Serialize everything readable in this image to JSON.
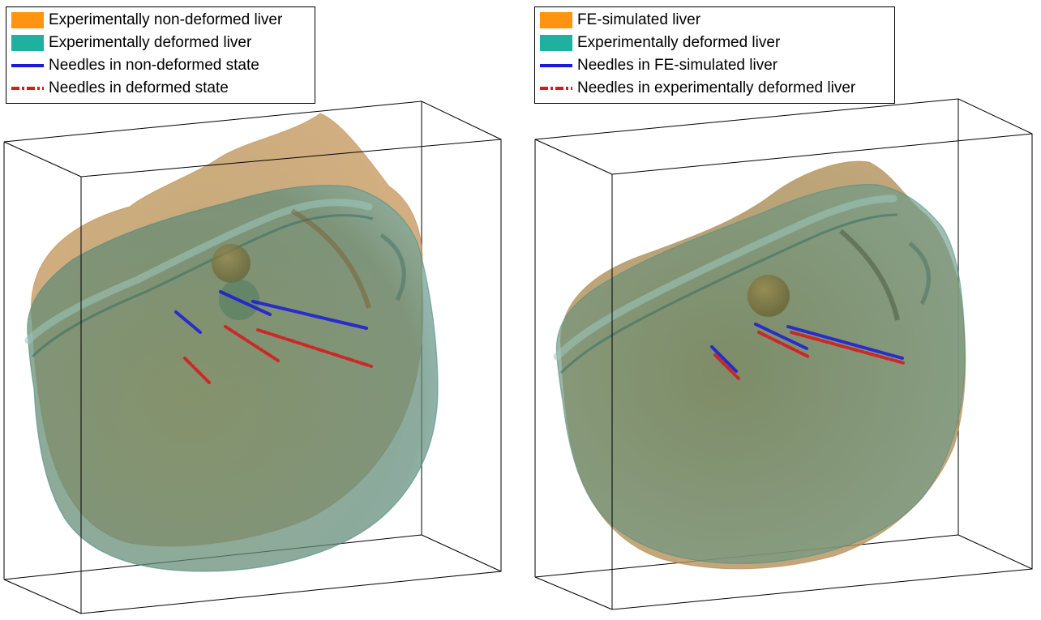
{
  "colors": {
    "non_deformed_liver": "#ff9410",
    "deformed_liver": "#20b0a0",
    "needles_blue": "#1a1ad8",
    "needles_red": "#d21e1e"
  },
  "panels": [
    {
      "legend": [
        {
          "label": "Experimentally non-deformed liver",
          "kind": "patch",
          "color": "#ff9410"
        },
        {
          "label": "Experimentally deformed liver",
          "kind": "patch",
          "color": "#20b0a0"
        },
        {
          "label": "Needles in non-deformed state",
          "kind": "line",
          "color": "#1a1ad8"
        },
        {
          "label": "Needles in deformed state",
          "kind": "dashdot",
          "color": "#d21e1e"
        }
      ]
    },
    {
      "legend": [
        {
          "label": "FE-simulated liver",
          "kind": "patch",
          "color": "#ff9410"
        },
        {
          "label": "Experimentally deformed liver",
          "kind": "patch",
          "color": "#20b0a0"
        },
        {
          "label": "Needles in FE-simulated liver",
          "kind": "line",
          "color": "#1a1ad8"
        },
        {
          "label": "Needles in experimentally deformed liver",
          "kind": "dashdot",
          "color": "#d21e1e"
        }
      ]
    }
  ]
}
